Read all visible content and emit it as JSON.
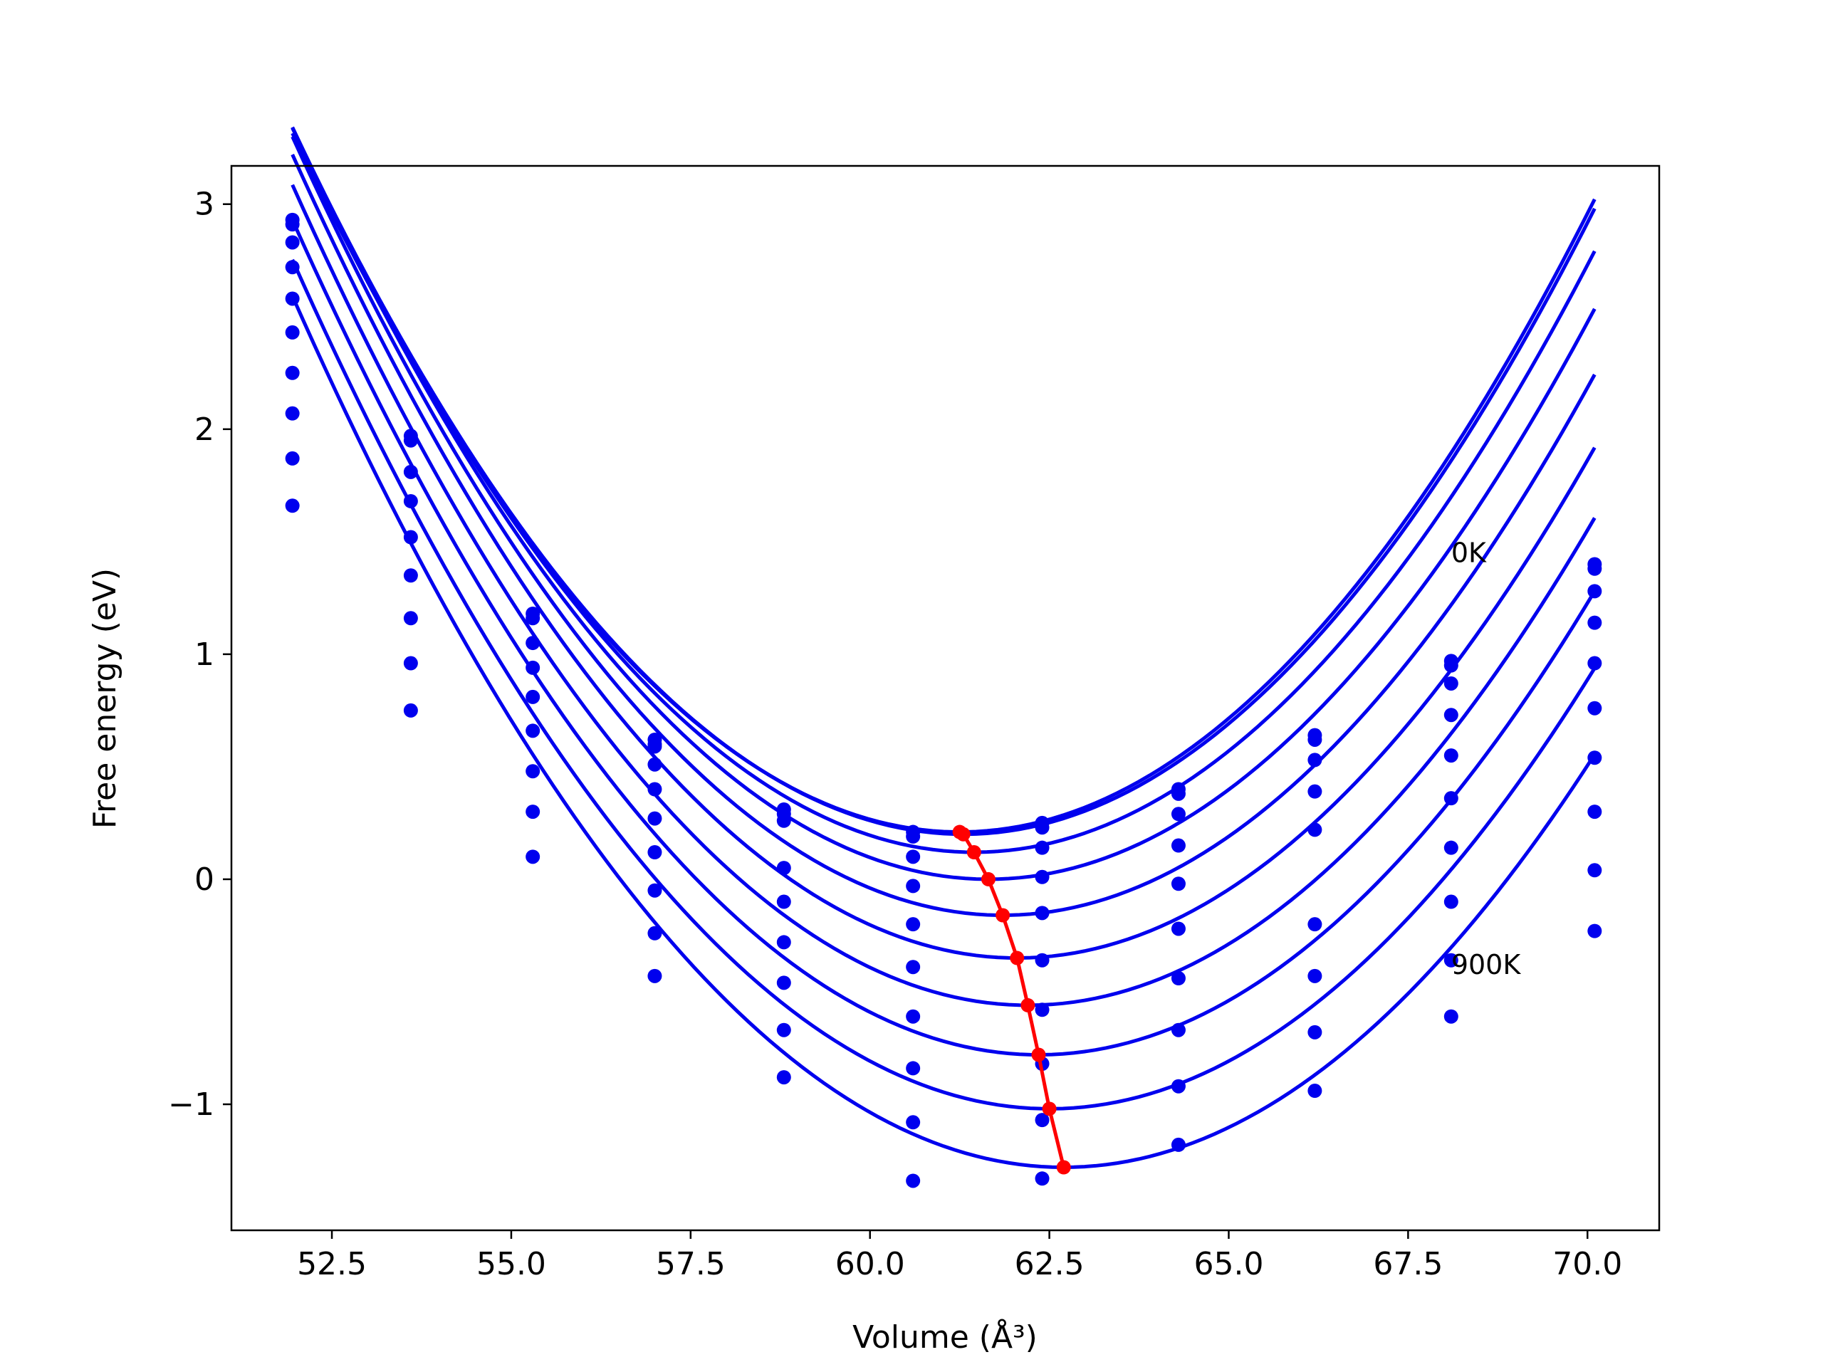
{
  "chart_data": {
    "type": "line",
    "title": "",
    "xlabel": "Volume (Å³)",
    "ylabel": "Free energy (eV)",
    "xlim": [
      51.1,
      71.0
    ],
    "ylim": [
      -1.56,
      3.17
    ],
    "xticks": [
      52.5,
      55.0,
      57.5,
      60.0,
      62.5,
      65.0,
      67.5,
      70.0
    ],
    "xtick_labels": [
      "52.5",
      "55.0",
      "57.5",
      "60.0",
      "62.5",
      "65.0",
      "67.5",
      "70.0"
    ],
    "yticks": [
      -1,
      0,
      1,
      2,
      3
    ],
    "ytick_labels": [
      "−1",
      "0",
      "1",
      "2",
      "3"
    ],
    "grid": false,
    "annotations": [
      {
        "text": "0K",
        "x": 68.1,
        "y": 1.45
      },
      {
        "text": "900K",
        "x": 68.1,
        "y": -0.38
      }
    ],
    "curve_color": "#0000ee",
    "points_color": "#0000ee",
    "min_line_color": "#ff0000",
    "volumes": [
      51.95,
      53.6,
      55.3,
      57.0,
      58.8,
      60.6,
      62.4,
      64.3,
      66.2,
      68.1,
      70.1
    ],
    "curve_x_range": [
      51.95,
      70.1
    ],
    "series": [
      {
        "curve": {
          "a": 0.0359,
          "v0": 61.25,
          "f0": 0.21
        },
        "points": [
          2.93,
          1.97,
          1.18,
          0.62,
          0.31,
          0.21,
          0.25,
          0.4,
          0.64,
          0.97,
          1.4
        ]
      },
      {
        "curve": {
          "a": 0.0359,
          "v0": 61.3,
          "f0": 0.2
        },
        "points": [
          2.91,
          1.95,
          1.16,
          0.6,
          0.29,
          0.19,
          0.23,
          0.38,
          0.62,
          0.95,
          1.38
        ]
      },
      {
        "curve": {
          "a": 0.0357,
          "v0": 61.45,
          "f0": 0.12
        },
        "points": [
          2.83,
          1.81,
          1.05,
          0.59,
          0.26,
          0.1,
          0.14,
          0.29,
          0.53,
          0.87,
          1.28
        ]
      },
      {
        "curve": {
          "a": 0.0355,
          "v0": 61.65,
          "f0": 0.0
        },
        "points": [
          2.72,
          1.68,
          0.94,
          0.51,
          0.05,
          -0.03,
          0.01,
          0.15,
          0.39,
          0.73,
          1.14
        ]
      },
      {
        "curve": {
          "a": 0.0353,
          "v0": 61.85,
          "f0": -0.16
        },
        "points": [
          2.58,
          1.52,
          0.81,
          0.4,
          -0.1,
          -0.2,
          -0.15,
          -0.02,
          0.22,
          0.55,
          0.96
        ]
      },
      {
        "curve": {
          "a": 0.035,
          "v0": 62.05,
          "f0": -0.35
        },
        "points": [
          2.43,
          1.35,
          0.66,
          0.27,
          -0.28,
          -0.39,
          -0.36,
          -0.22,
          -0.2,
          0.36,
          0.76
        ]
      },
      {
        "curve": {
          "a": 0.0347,
          "v0": 62.2,
          "f0": -0.56
        },
        "points": [
          2.25,
          1.16,
          0.48,
          0.12,
          -0.46,
          -0.61,
          -0.58,
          -0.44,
          -0.43,
          0.14,
          0.54
        ]
      },
      {
        "curve": {
          "a": 0.0343,
          "v0": 62.35,
          "f0": -0.78
        },
        "points": [
          2.07,
          0.96,
          0.3,
          -0.05,
          -0.67,
          -0.84,
          -0.82,
          -0.67,
          -0.68,
          -0.1,
          0.3
        ]
      },
      {
        "curve": {
          "a": 0.0339,
          "v0": 62.5,
          "f0": -1.02
        },
        "points": [
          1.87,
          0.75,
          0.1,
          -0.24,
          -0.88,
          -1.08,
          -1.07,
          -0.92,
          -0.94,
          -0.36,
          0.04
        ]
      },
      {
        "curve": {
          "a": 0.0335,
          "v0": 62.7,
          "f0": -1.28
        },
        "points": [
          1.66,
          null,
          null,
          -0.43,
          null,
          -1.34,
          -1.33,
          -1.18,
          null,
          -0.61,
          -0.23
        ]
      }
    ],
    "minima_line": {
      "x": [
        61.25,
        61.3,
        61.45,
        61.65,
        61.85,
        62.05,
        62.2,
        62.35,
        62.5,
        62.7
      ],
      "y": [
        0.21,
        0.2,
        0.12,
        0.0,
        -0.16,
        -0.35,
        -0.56,
        -0.78,
        -1.02,
        -1.28
      ]
    }
  }
}
